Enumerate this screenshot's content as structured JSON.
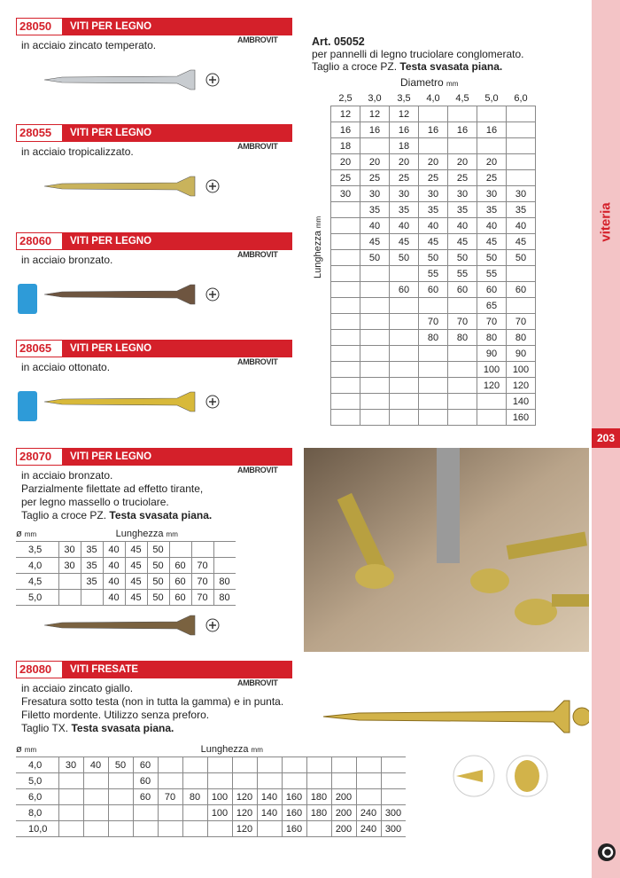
{
  "sidebar": {
    "category": "viteria",
    "page": "203"
  },
  "brand": "AMBROVIT",
  "products": [
    {
      "code": "28050",
      "title": "VITI PER LEGNO",
      "lines": [
        "in acciaio zincato temperato."
      ]
    },
    {
      "code": "28055",
      "title": "VITI PER LEGNO",
      "lines": [
        "in acciaio tropicalizzato."
      ]
    },
    {
      "code": "28060",
      "title": "VITI PER LEGNO",
      "lines": [
        "in acciaio bronzato."
      ]
    },
    {
      "code": "28065",
      "title": "VITI PER LEGNO",
      "lines": [
        "in acciaio ottonato."
      ]
    },
    {
      "code": "28070",
      "title": "VITI PER LEGNO",
      "lines": [
        "in acciaio bronzato.",
        "Parzialmente filettate ad effetto tirante,",
        "per legno massello o truciolare."
      ],
      "cut": "Taglio a croce PZ.",
      "cut_bold": "Testa svasata piana.",
      "table": {
        "diam_label": "ø",
        "diam_unit": "mm",
        "len_title": "Lunghezza",
        "len_unit": "mm",
        "rows": [
          {
            "d": "3,5",
            "values": [
              30,
              35,
              40,
              45,
              50,
              null,
              null,
              null
            ]
          },
          {
            "d": "4,0",
            "values": [
              30,
              35,
              40,
              45,
              50,
              60,
              70,
              null
            ]
          },
          {
            "d": "4,5",
            "values": [
              null,
              35,
              40,
              45,
              50,
              60,
              70,
              80
            ]
          },
          {
            "d": "5,0",
            "values": [
              null,
              null,
              40,
              45,
              50,
              60,
              70,
              80
            ]
          }
        ]
      }
    },
    {
      "code": "28080",
      "title": "VITI FRESATE",
      "lines": [
        "in acciaio zincato giallo.",
        "Fresatura sotto testa (non in tutta la gamma) e in punta.",
        "Filetto mordente. Utilizzo senza preforo."
      ],
      "cut": "Taglio TX.",
      "cut_bold": "Testa svasata piana.",
      "table": {
        "diam_label": "ø",
        "diam_unit": "mm",
        "len_title": "Lunghezza",
        "len_unit": "mm",
        "rows": [
          {
            "d": "4,0",
            "values": [
              30,
              40,
              50,
              60,
              null,
              null,
              null,
              null,
              null,
              null,
              null,
              null,
              null,
              null
            ]
          },
          {
            "d": "5,0",
            "values": [
              null,
              null,
              null,
              60,
              null,
              null,
              null,
              null,
              null,
              null,
              null,
              null,
              null,
              null
            ]
          },
          {
            "d": "6,0",
            "values": [
              null,
              null,
              null,
              60,
              70,
              80,
              100,
              120,
              140,
              160,
              180,
              200,
              null,
              null
            ]
          },
          {
            "d": "8,0",
            "values": [
              null,
              null,
              null,
              null,
              null,
              null,
              100,
              120,
              140,
              160,
              180,
              200,
              240,
              300
            ]
          },
          {
            "d": "10,0",
            "values": [
              null,
              null,
              null,
              null,
              null,
              null,
              null,
              120,
              null,
              160,
              null,
              200,
              240,
              300
            ]
          }
        ]
      }
    }
  ],
  "article": {
    "code": "Art. 05052",
    "lines": [
      "per pannelli di legno truciolare conglomerato."
    ],
    "cut": "Taglio a croce PZ.",
    "cut_bold": "Testa svasata piana.",
    "col_title": "Diametro",
    "col_unit": "mm",
    "row_title": "Lunghezza",
    "row_unit": "mm",
    "columns": [
      "2,5",
      "3,0",
      "3,5",
      "4,0",
      "4,5",
      "5,0",
      "6,0"
    ],
    "rows": [
      [
        12,
        12,
        12,
        null,
        null,
        null,
        null
      ],
      [
        16,
        16,
        16,
        16,
        16,
        16,
        null
      ],
      [
        18,
        null,
        18,
        null,
        null,
        null,
        null
      ],
      [
        20,
        20,
        20,
        20,
        20,
        20,
        null
      ],
      [
        25,
        25,
        25,
        25,
        25,
        25,
        null
      ],
      [
        30,
        30,
        30,
        30,
        30,
        30,
        30
      ],
      [
        null,
        35,
        35,
        35,
        35,
        35,
        35
      ],
      [
        null,
        40,
        40,
        40,
        40,
        40,
        40
      ],
      [
        null,
        45,
        45,
        45,
        45,
        45,
        45
      ],
      [
        null,
        50,
        50,
        50,
        50,
        50,
        50
      ],
      [
        null,
        null,
        null,
        55,
        55,
        55,
        null
      ],
      [
        null,
        null,
        60,
        60,
        60,
        60,
        60
      ],
      [
        null,
        null,
        null,
        null,
        null,
        65,
        null
      ],
      [
        null,
        null,
        null,
        70,
        70,
        70,
        70
      ],
      [
        null,
        null,
        null,
        80,
        80,
        80,
        80
      ],
      [
        null,
        null,
        null,
        null,
        null,
        90,
        90
      ],
      [
        null,
        null,
        null,
        null,
        null,
        100,
        100
      ],
      [
        null,
        null,
        null,
        null,
        null,
        120,
        120
      ],
      [
        null,
        null,
        null,
        null,
        null,
        null,
        140
      ],
      [
        null,
        null,
        null,
        null,
        null,
        null,
        160
      ]
    ]
  }
}
